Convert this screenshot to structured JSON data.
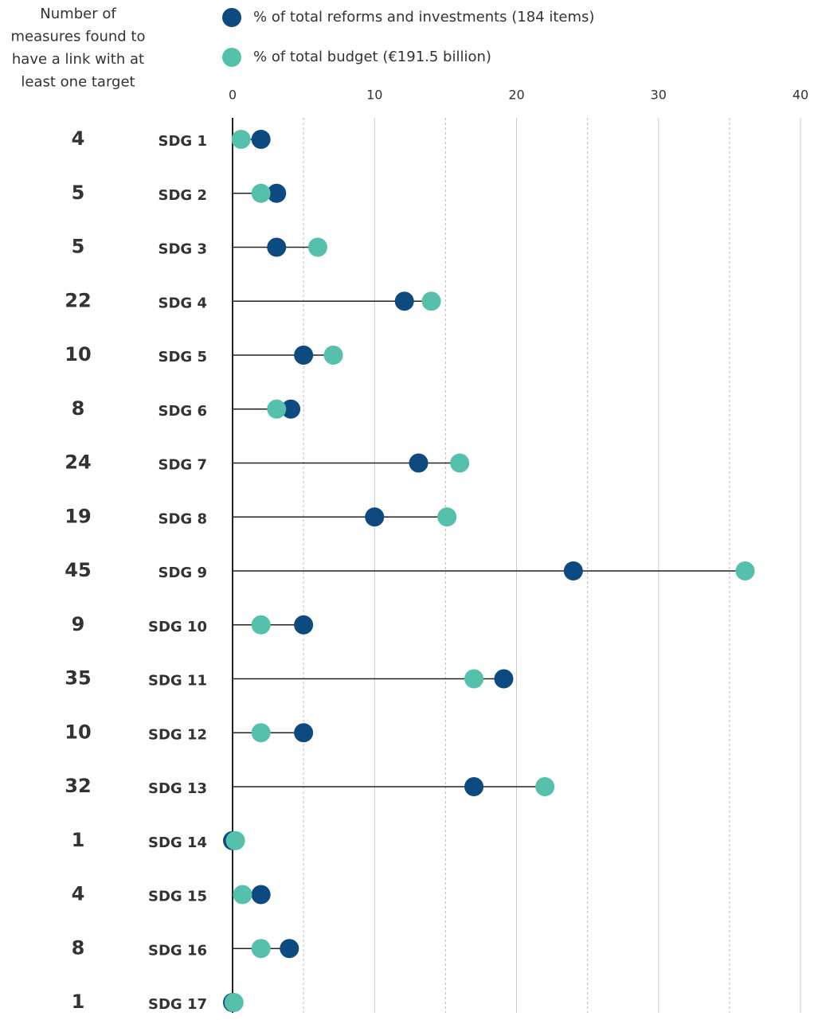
{
  "chart_data": {
    "type": "dumbbell",
    "counts_header": [
      "Number of",
      "measures found to",
      "have a link with at",
      "least one target"
    ],
    "categories": [
      "SDG 1",
      "SDG 2",
      "SDG 3",
      "SDG 4",
      "SDG 5",
      "SDG 6",
      "SDG 7",
      "SDG 8",
      "SDG 9",
      "SDG 10",
      "SDG 11",
      "SDG 12",
      "SDG 13",
      "SDG 14",
      "SDG 15",
      "SDG 16",
      "SDG 17"
    ],
    "counts": [
      4,
      5,
      5,
      22,
      10,
      8,
      24,
      19,
      45,
      9,
      35,
      10,
      32,
      1,
      4,
      8,
      1
    ],
    "counts_color": "#1486c2",
    "series": [
      {
        "name": "% of total reforms and investments (184 items)",
        "color": "#0c4a80",
        "values": [
          2.0,
          3.1,
          3.1,
          12.1,
          5.0,
          4.1,
          13.1,
          10.0,
          24.0,
          5.0,
          19.1,
          5.0,
          17.0,
          0,
          2.0,
          4.0,
          0
        ]
      },
      {
        "name": "% of total budget (€191.5 billion)",
        "color": "#55c0ab",
        "values": [
          0.6,
          2.0,
          6.0,
          14.0,
          7.1,
          3.1,
          16.0,
          15.1,
          36.1,
          2.0,
          17.0,
          2.0,
          22.0,
          0.2,
          0.7,
          2.0,
          0.1
        ]
      }
    ],
    "xlim": [
      0,
      40
    ],
    "xticks": [
      0,
      10,
      20,
      30,
      40
    ],
    "minor_grid": [
      5,
      15,
      25,
      35
    ],
    "grid": true
  }
}
